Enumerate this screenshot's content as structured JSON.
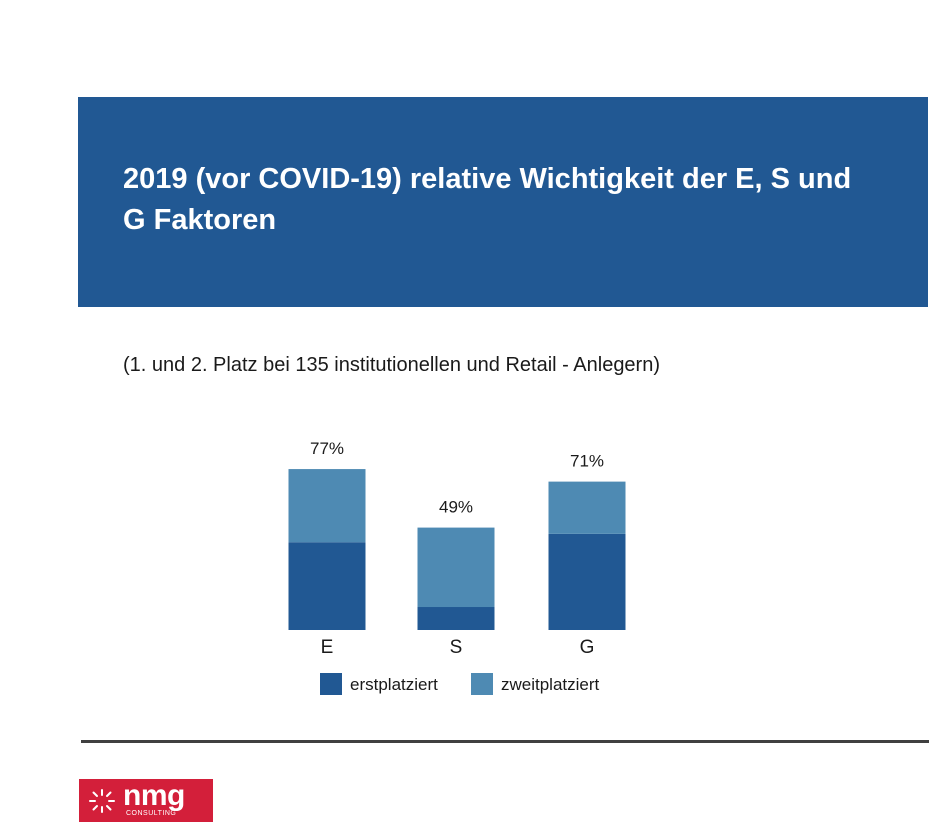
{
  "header": {
    "title": "2019 (vor COVID-19) relative Wichtigkeit der E, S und G Faktoren",
    "subtitle": "(1. und 2. Platz bei 135 institutionellen und Retail - Anlegern)"
  },
  "chart_data": {
    "type": "bar",
    "stacked": true,
    "categories": [
      "E",
      "S",
      "G"
    ],
    "series": [
      {
        "name": "erstplatziert",
        "color": "#215893",
        "values": [
          42,
          11,
          46
        ]
      },
      {
        "name": "zweitplatziert",
        "color": "#4e8ab3",
        "values": [
          35,
          38,
          25
        ]
      }
    ],
    "totals": [
      "77%",
      "49%",
      "71%"
    ],
    "ylim": [
      0,
      80
    ],
    "legend_position": "bottom",
    "grid": false
  },
  "legend": {
    "items": [
      {
        "label": "erstplatziert",
        "color": "#215893"
      },
      {
        "label": "zweitplatziert",
        "color": "#4e8ab3"
      }
    ]
  },
  "logo": {
    "text": "nmg",
    "subtext": "CONSULTING"
  }
}
